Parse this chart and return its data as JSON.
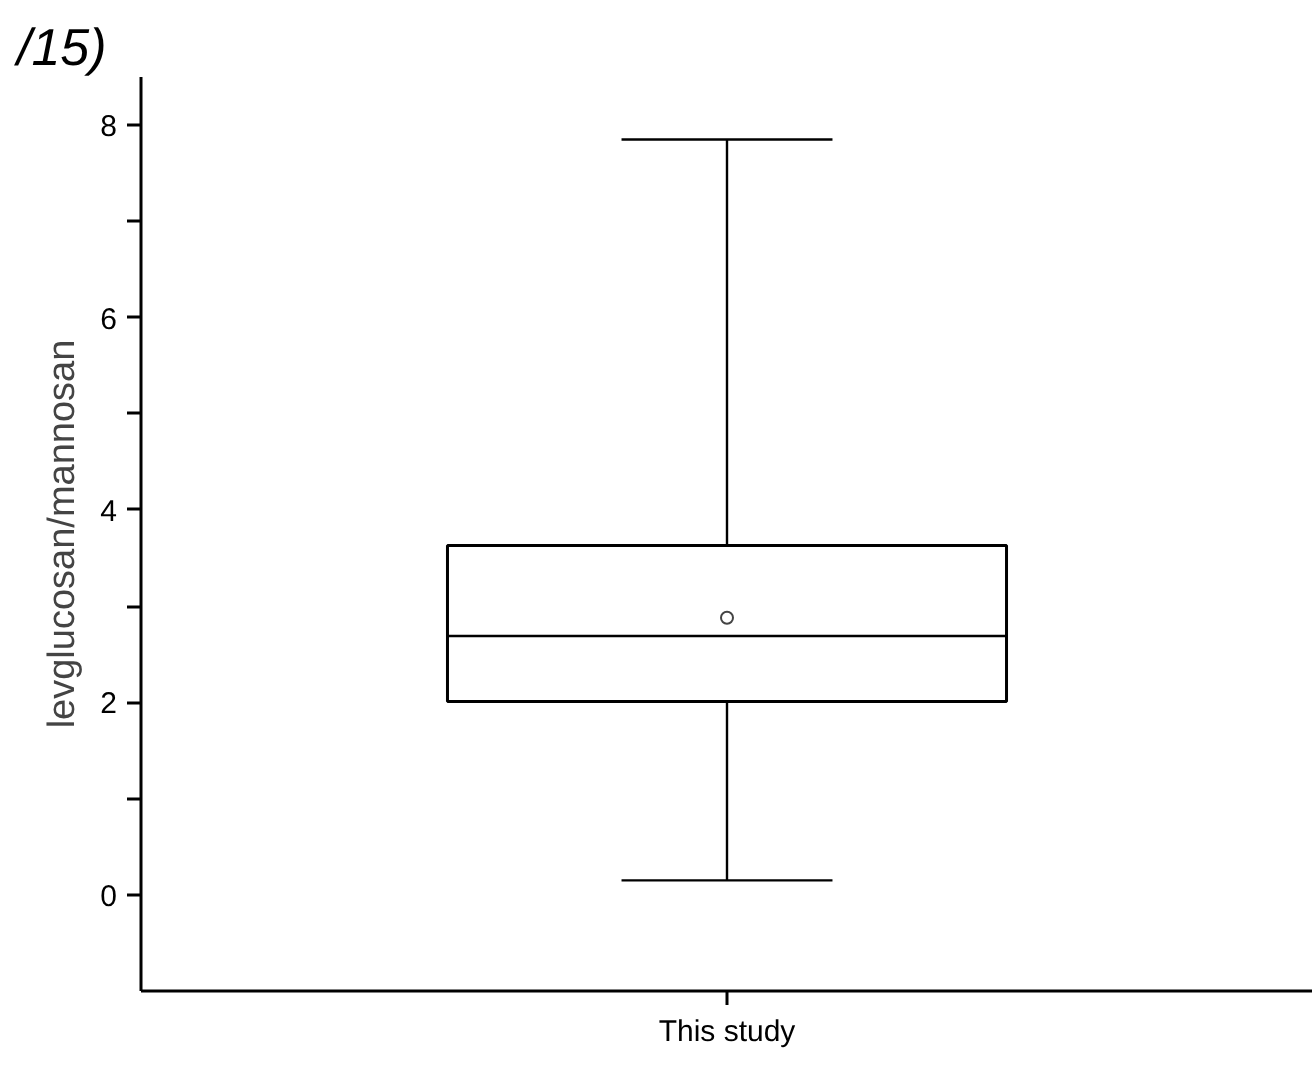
{
  "chart_data": {
    "type": "box",
    "title": "/15)",
    "ylabel": "levglucosan/mannosan",
    "categories": [
      "This study"
    ],
    "boxes": [
      {
        "low": 0.15,
        "q1": 2.01,
        "median": 2.69,
        "q3": 3.63,
        "high": 7.85,
        "mean": 2.88
      }
    ],
    "ylim": [
      -1,
      8.5
    ],
    "yticks": [
      0,
      {
        "value": 1,
        "label": null
      },
      2,
      {
        "value": 3,
        "label": null
      },
      4,
      {
        "value": 5,
        "label": null
      },
      6,
      {
        "value": 7,
        "label": null
      },
      8
    ],
    "grid": false
  }
}
